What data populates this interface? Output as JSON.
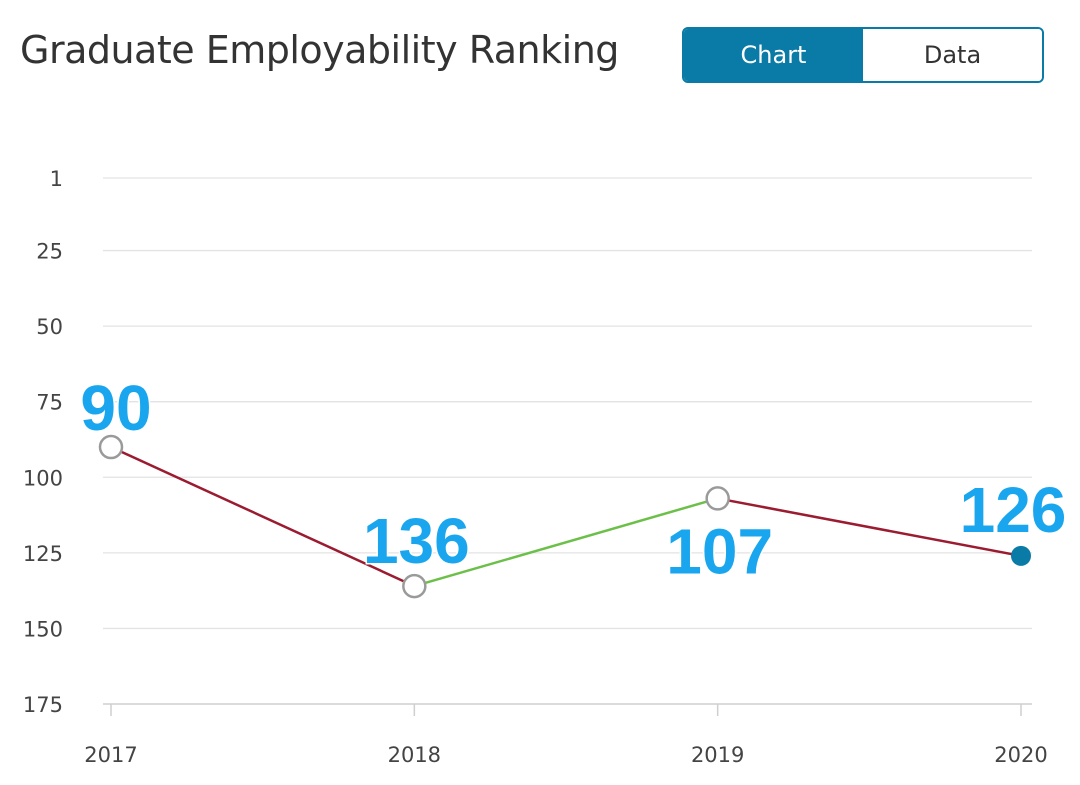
{
  "header": {
    "title": "Graduate Employability Ranking",
    "toggle": {
      "chart_label": "Chart",
      "data_label": "Data"
    }
  },
  "colors": {
    "accent": "#0a7aa6",
    "decline_line": "#9b1b30",
    "improve_line": "#6cc04a",
    "data_label": "#1aa6ee",
    "grid": "#e3e3e3"
  },
  "chart_data": {
    "type": "line",
    "title": "Graduate Employability Ranking",
    "xlabel": "",
    "ylabel": "",
    "categories": [
      "2017",
      "2018",
      "2019",
      "2020"
    ],
    "values": [
      90,
      136,
      107,
      126
    ],
    "data_labels": [
      "90",
      "136",
      "107",
      "126"
    ],
    "y_ticks": [
      1,
      25,
      50,
      75,
      100,
      125,
      150,
      175
    ],
    "y_tick_labels": [
      "1",
      "25",
      "50",
      "75",
      "100",
      "125",
      "150",
      "175"
    ],
    "ylim": [
      1,
      175
    ],
    "y_inverted": true,
    "grid": true
  }
}
